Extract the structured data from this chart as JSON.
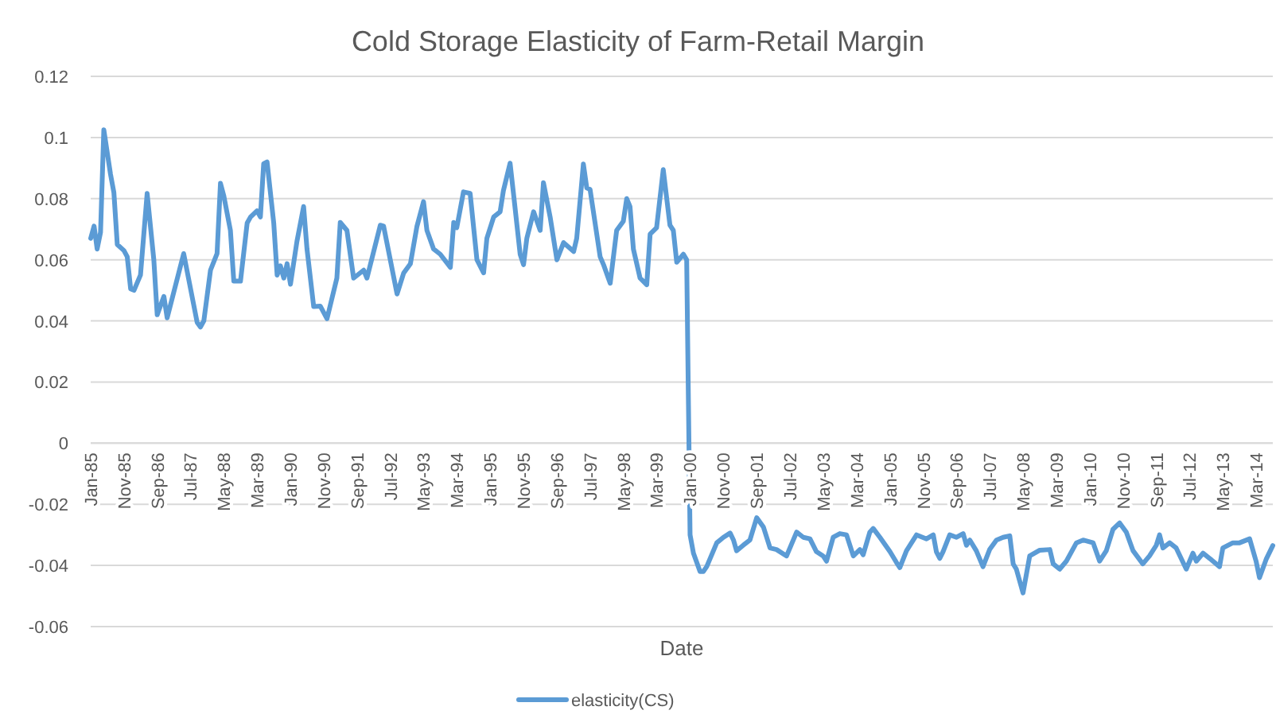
{
  "chart_data": {
    "type": "line",
    "title": "Cold Storage Elasticity of Farm-Retail Margin",
    "xlabel": "Date",
    "x": [
      "1985-01",
      "1985-02",
      "1985-03",
      "1985-04",
      "1985-05",
      "1985-07",
      "1985-08",
      "1985-09",
      "1985-11",
      "1985-12",
      "1986-01",
      "1986-02",
      "1986-04",
      "1986-06",
      "1986-08",
      "1986-09",
      "1986-11",
      "1986-12",
      "1987-05",
      "1987-09",
      "1987-10",
      "1987-11",
      "1988-01",
      "1988-03",
      "1988-04",
      "1988-05",
      "1988-07",
      "1988-08",
      "1988-10",
      "1988-12",
      "1989-01",
      "1989-03",
      "1989-04",
      "1989-05",
      "1989-06",
      "1989-08",
      "1989-09",
      "1989-10",
      "1989-11",
      "1989-12",
      "1990-01",
      "1990-03",
      "1990-05",
      "1990-06",
      "1990-08",
      "1990-10",
      "1990-12",
      "1991-03",
      "1991-04",
      "1991-06",
      "1991-08",
      "1991-11",
      "1991-12",
      "1992-04",
      "1992-05",
      "1992-07",
      "1992-09",
      "1992-11",
      "1993-01",
      "1993-03",
      "1993-05",
      "1993-06",
      "1993-08",
      "1993-10",
      "1994-01",
      "1994-02",
      "1994-03",
      "1994-05",
      "1994-07",
      "1994-09",
      "1994-11",
      "1994-12",
      "1995-02",
      "1995-04",
      "1995-05",
      "1995-07",
      "1995-08",
      "1995-10",
      "1995-11",
      "1995-12",
      "1996-02",
      "1996-04",
      "1996-05",
      "1996-07",
      "1996-09",
      "1996-11",
      "1997-02",
      "1997-03",
      "1997-05",
      "1997-06",
      "1997-07",
      "1997-10",
      "1997-11",
      "1998-01",
      "1998-03",
      "1998-05",
      "1998-06",
      "1998-07",
      "1998-08",
      "1998-10",
      "1998-12",
      "1999-01",
      "1999-03",
      "1999-05",
      "1999-07",
      "1999-08",
      "1999-09",
      "1999-11",
      "1999-12",
      "2000-01",
      "2000-02",
      "2000-04",
      "2000-05",
      "2000-06",
      "2000-09",
      "2000-11",
      "2001-01",
      "2001-02",
      "2001-03",
      "2001-05",
      "2001-07",
      "2001-09",
      "2001-11",
      "2002-01",
      "2002-03",
      "2002-06",
      "2002-09",
      "2002-11",
      "2003-01",
      "2003-03",
      "2003-05",
      "2003-06",
      "2003-08",
      "2003-10",
      "2003-12",
      "2004-02",
      "2004-04",
      "2004-05",
      "2004-07",
      "2004-08",
      "2004-10",
      "2005-01",
      "2005-03",
      "2005-04",
      "2005-06",
      "2005-09",
      "2005-12",
      "2006-02",
      "2006-03",
      "2006-04",
      "2006-05",
      "2006-07",
      "2006-09",
      "2006-11",
      "2006-12",
      "2007-01",
      "2007-03",
      "2007-05",
      "2007-07",
      "2007-09",
      "2007-11",
      "2008-01",
      "2008-02",
      "2008-03",
      "2008-05",
      "2008-07",
      "2008-10",
      "2009-01",
      "2009-02",
      "2009-04",
      "2009-06",
      "2009-09",
      "2009-11",
      "2010-02",
      "2010-04",
      "2010-06",
      "2010-08",
      "2010-10",
      "2010-12",
      "2011-02",
      "2011-05",
      "2011-07",
      "2011-09",
      "2011-10",
      "2011-11",
      "2012-01",
      "2012-03",
      "2012-06",
      "2012-08",
      "2012-09",
      "2012-11",
      "2013-01",
      "2013-04",
      "2013-05",
      "2013-08",
      "2013-10",
      "2014-01",
      "2014-03",
      "2014-04",
      "2014-06",
      "2014-08"
    ],
    "series": [
      {
        "name": "elasticity(CS)",
        "color": "#5b9bd5",
        "values": [
          0.067,
          0.071,
          0.0635,
          0.069,
          0.1025,
          0.088,
          0.082,
          0.065,
          0.063,
          0.061,
          0.0505,
          0.05,
          0.055,
          0.0817,
          0.06,
          0.042,
          0.048,
          0.041,
          0.062,
          0.0395,
          0.038,
          0.04,
          0.0566,
          0.062,
          0.085,
          0.081,
          0.0696,
          0.053,
          0.053,
          0.072,
          0.074,
          0.076,
          0.074,
          0.0914,
          0.092,
          0.072,
          0.055,
          0.058,
          0.054,
          0.0587,
          0.052,
          0.066,
          0.0774,
          0.0635,
          0.0447,
          0.0448,
          0.0407,
          0.054,
          0.0722,
          0.0696,
          0.054,
          0.0566,
          0.054,
          0.0713,
          0.071,
          0.06,
          0.0488,
          0.0557,
          0.0587,
          0.0708,
          0.079,
          0.0696,
          0.0635,
          0.0618,
          0.0575,
          0.0722,
          0.0705,
          0.0822,
          0.0817,
          0.06,
          0.0557,
          0.067,
          0.074,
          0.0757,
          0.0826,
          0.0916,
          0.0817,
          0.0618,
          0.0584,
          0.067,
          0.0757,
          0.0696,
          0.0852,
          0.074,
          0.06,
          0.0656,
          0.0627,
          0.067,
          0.0913,
          0.0835,
          0.083,
          0.061,
          0.0584,
          0.0523,
          0.0696,
          0.0726,
          0.08,
          0.0774,
          0.0635,
          0.054,
          0.0518,
          0.0684,
          0.0705,
          0.0895,
          0.0713,
          0.0696,
          0.0592,
          0.0618,
          0.06,
          -0.03,
          -0.036,
          -0.042,
          -0.042,
          -0.0404,
          -0.0326,
          -0.0308,
          -0.0294,
          -0.0317,
          -0.0352,
          -0.0334,
          -0.0317,
          -0.0244,
          -0.0274,
          -0.0343,
          -0.0348,
          -0.0369,
          -0.0291,
          -0.0308,
          -0.0313,
          -0.0355,
          -0.0369,
          -0.0386,
          -0.0308,
          -0.0296,
          -0.03,
          -0.0369,
          -0.0348,
          -0.0365,
          -0.0291,
          -0.0279,
          -0.0308,
          -0.0355,
          -0.039,
          -0.0407,
          -0.0352,
          -0.03,
          -0.0313,
          -0.03,
          -0.0355,
          -0.0377,
          -0.0355,
          -0.03,
          -0.0308,
          -0.0296,
          -0.0334,
          -0.0317,
          -0.0352,
          -0.0404,
          -0.0348,
          -0.0317,
          -0.0308,
          -0.0303,
          -0.0395,
          -0.0412,
          -0.049,
          -0.0369,
          -0.035,
          -0.0348,
          -0.0395,
          -0.0412,
          -0.0386,
          -0.0326,
          -0.0317,
          -0.0326,
          -0.0386,
          -0.0352,
          -0.0282,
          -0.0261,
          -0.0291,
          -0.0352,
          -0.0395,
          -0.0369,
          -0.0334,
          -0.03,
          -0.0343,
          -0.0326,
          -0.0343,
          -0.0412,
          -0.036,
          -0.0386,
          -0.036,
          -0.0377,
          -0.0404,
          -0.0343,
          -0.0326,
          -0.0326,
          -0.0313,
          -0.0386,
          -0.044,
          -0.038,
          -0.0335
        ]
      }
    ],
    "xlim": [
      "1985-01",
      "2014-08"
    ],
    "xticks": [
      {
        "value": "1985-01",
        "label": "Jan-85"
      },
      {
        "value": "1985-11",
        "label": "Nov-85"
      },
      {
        "value": "1986-09",
        "label": "Sep-86"
      },
      {
        "value": "1987-07",
        "label": "Jul-87"
      },
      {
        "value": "1988-05",
        "label": "May-88"
      },
      {
        "value": "1989-03",
        "label": "Mar-89"
      },
      {
        "value": "1990-01",
        "label": "Jan-90"
      },
      {
        "value": "1990-11",
        "label": "Nov-90"
      },
      {
        "value": "1991-09",
        "label": "Sep-91"
      },
      {
        "value": "1992-07",
        "label": "Jul-92"
      },
      {
        "value": "1993-05",
        "label": "May-93"
      },
      {
        "value": "1994-03",
        "label": "Mar-94"
      },
      {
        "value": "1995-01",
        "label": "Jan-95"
      },
      {
        "value": "1995-11",
        "label": "Nov-95"
      },
      {
        "value": "1996-09",
        "label": "Sep-96"
      },
      {
        "value": "1997-07",
        "label": "Jul-97"
      },
      {
        "value": "1998-05",
        "label": "May-98"
      },
      {
        "value": "1999-03",
        "label": "Mar-99"
      },
      {
        "value": "2000-01",
        "label": "Jan-00"
      },
      {
        "value": "2000-11",
        "label": "Nov-00"
      },
      {
        "value": "2001-09",
        "label": "Sep-01"
      },
      {
        "value": "2002-07",
        "label": "Jul-02"
      },
      {
        "value": "2003-05",
        "label": "May-03"
      },
      {
        "value": "2004-03",
        "label": "Mar-04"
      },
      {
        "value": "2005-01",
        "label": "Jan-05"
      },
      {
        "value": "2005-11",
        "label": "Nov-05"
      },
      {
        "value": "2006-09",
        "label": "Sep-06"
      },
      {
        "value": "2007-07",
        "label": "Jul-07"
      },
      {
        "value": "2008-05",
        "label": "May-08"
      },
      {
        "value": "2009-03",
        "label": "Mar-09"
      },
      {
        "value": "2010-01",
        "label": "Jan-10"
      },
      {
        "value": "2010-11",
        "label": "Nov-10"
      },
      {
        "value": "2011-09",
        "label": "Sep-11"
      },
      {
        "value": "2012-07",
        "label": "Jul-12"
      },
      {
        "value": "2013-05",
        "label": "May-13"
      },
      {
        "value": "2014-03",
        "label": "Mar-14"
      }
    ],
    "ylim": [
      -0.06,
      0.12
    ],
    "yticks": [
      -0.06,
      -0.04,
      -0.02,
      0,
      0.02,
      0.04,
      0.06,
      0.08,
      0.1,
      0.12
    ],
    "grid": "y",
    "legend": "bottom",
    "marker": "none",
    "line_style": "solid"
  }
}
